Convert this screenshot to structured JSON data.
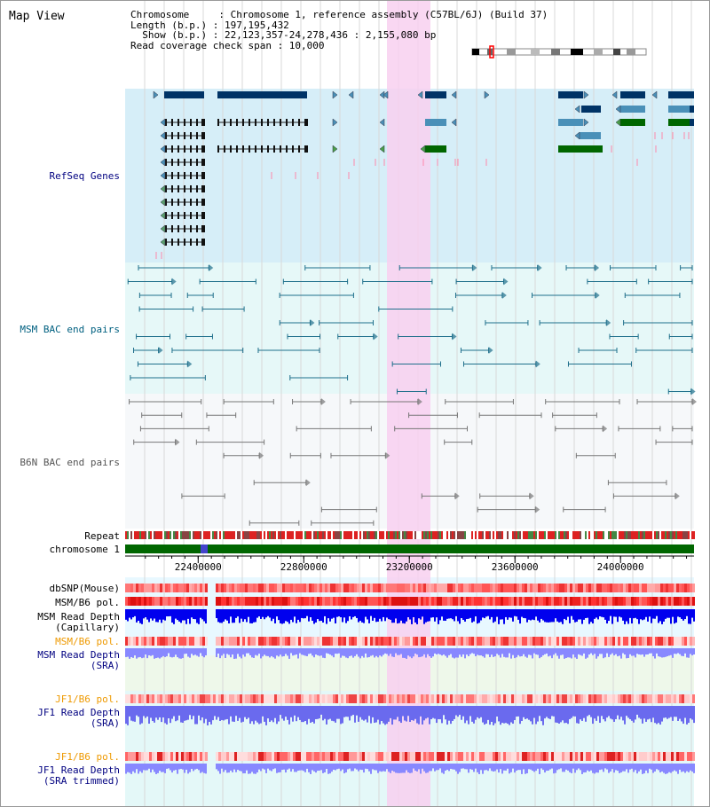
{
  "view_title": "Map View",
  "info": {
    "line1": "Chromosome     : Chromosome 1, reference assembly (C57BL/6J) (Build 37)",
    "line2": "Length (b.p.) : 197,195,432",
    "line3": "  Show (b.p.) : 22,123,357-24,278,436 : 2,155,080 bp",
    "line4": "Read coverage check span : 10,000"
  },
  "colors": {
    "refseq_bg": "#d6eef8",
    "msm_bac_bg": "#e6f8f8",
    "b6n_bac_bg": "#f6f8fa",
    "highlight": "#f8d0f0",
    "gene_dark": "#003366",
    "gene_light": "#4a90b8",
    "gene_green": "#006600",
    "msm_pair": "#1f6f8b",
    "b6n_pair": "#777777",
    "repeat_red": "#dd2222",
    "chromosome_green": "#006600",
    "snp_red": "#ee4444",
    "depth_blue": "#0000ee",
    "depth_light_blue": "#8888ff",
    "label_blue": "#000080",
    "label_orange": "#ee9900",
    "msm_label": "#006080"
  },
  "tracks": {
    "refseq": "RefSeq Genes",
    "msm_bac": "MSM BAC end pairs",
    "b6n_bac": "B6N BAC end pairs",
    "repeat": "Repeat",
    "chromosome": "chromosome 1",
    "dbsnp": "dbSNP(Mouse)",
    "msm_b6_pol": "MSM/B6 pol.",
    "msm_depth_cap_1": "MSM Read Depth",
    "msm_depth_cap_2": "(Capillary)",
    "msm_b6_pol_2": "MSM/B6 pol.",
    "msm_depth_sra_1": "MSM Read Depth",
    "msm_depth_sra_2": "(SRA)",
    "jf1_b6_pol": "JF1/B6 pol.",
    "jf1_depth_sra_1": "JF1 Read Depth",
    "jf1_depth_sra_2": "(SRA)",
    "jf1_b6_pol_2": "JF1/B6 pol.",
    "jf1_depth_trim_1": "JF1 Read Depth",
    "jf1_depth_trim_2": "(SRA trimmed)"
  },
  "axis": {
    "ticks": [
      "22400000",
      "22800000",
      "23200000",
      "23600000",
      "24000000"
    ],
    "tick_values": [
      22400000,
      22800000,
      23200000,
      23600000,
      24000000
    ],
    "start": 22123357,
    "end": 24278436
  }
}
